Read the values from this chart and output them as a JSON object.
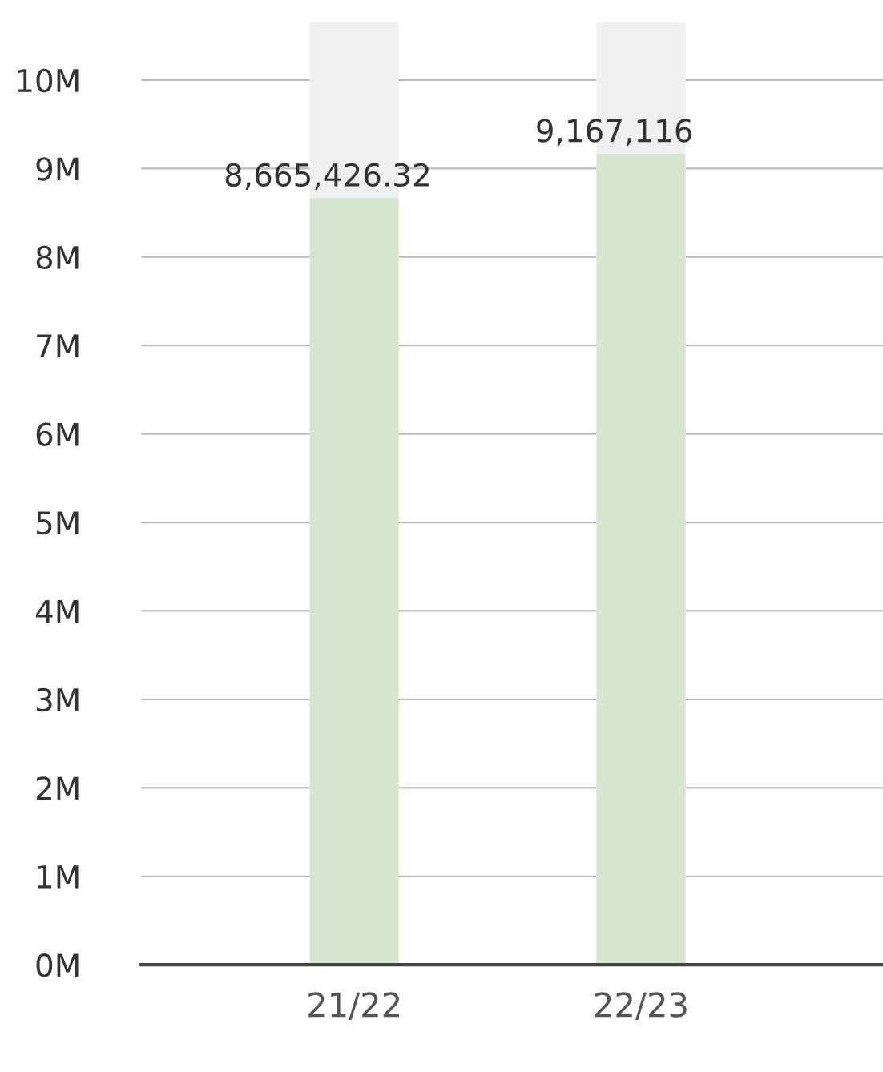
{
  "chart_data": {
    "type": "bar",
    "categories": [
      "21/22",
      "22/23"
    ],
    "values": [
      8665426.32,
      9167116
    ],
    "value_labels": [
      "8,665,426.32",
      "9,167,116"
    ],
    "color": "#d5e5cf",
    "ylim": [
      0,
      10650000
    ],
    "yticks": [
      {
        "value": 0,
        "label": "0M"
      },
      {
        "value": 1000000,
        "label": "1M"
      },
      {
        "value": 2000000,
        "label": "2M"
      },
      {
        "value": 3000000,
        "label": "3M"
      },
      {
        "value": 4000000,
        "label": "4M"
      },
      {
        "value": 5000000,
        "label": "5M"
      },
      {
        "value": 6000000,
        "label": "6M"
      },
      {
        "value": 7000000,
        "label": "7M"
      },
      {
        "value": 8000000,
        "label": "8M"
      },
      {
        "value": 9000000,
        "label": "9M"
      },
      {
        "value": 10000000,
        "label": "10M"
      }
    ],
    "grid": "y"
  }
}
